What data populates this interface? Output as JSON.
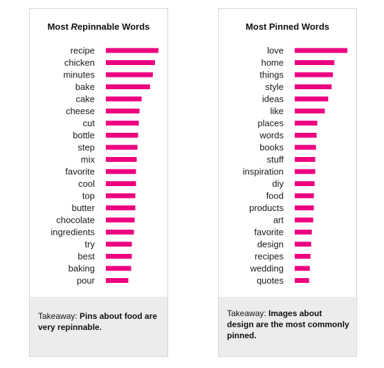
{
  "accent_color": "#ec007f",
  "chart_data": [
    {
      "type": "bar",
      "orientation": "horizontal",
      "title_prefix": "Most ",
      "title_emph": "R",
      "title_rest": "epinnable Words",
      "categories": [
        "recipe",
        "chicken",
        "minutes",
        "bake",
        "cake",
        "cheese",
        "cut",
        "bottle",
        "step",
        "mix",
        "favorite",
        "cool",
        "top",
        "butter",
        "chocolate",
        "ingredients",
        "try",
        "best",
        "baking",
        "pour"
      ],
      "values": [
        75,
        70,
        67,
        63,
        51,
        48,
        47,
        46,
        45,
        44,
        43,
        43,
        42,
        42,
        41,
        40,
        37,
        37,
        36,
        32
      ],
      "xlim": [
        0,
        75
      ],
      "takeaway_label": "Takeaway: ",
      "takeaway_text": "Pins about food are very repinnable."
    },
    {
      "type": "bar",
      "orientation": "horizontal",
      "title_prefix": "Most Pinned Words",
      "title_emph": "",
      "title_rest": "",
      "categories": [
        "love",
        "home",
        "things",
        "style",
        "ideas",
        "like",
        "places",
        "words",
        "books",
        "stuff",
        "inspiration",
        "diy",
        "food",
        "products",
        "art",
        "favorite",
        "design",
        "recipes",
        "wedding",
        "quotes"
      ],
      "values": [
        77,
        58,
        56,
        54,
        49,
        44,
        33,
        32,
        31,
        30,
        30,
        29,
        28,
        28,
        27,
        25,
        24,
        23,
        22,
        21
      ],
      "xlim": [
        0,
        77
      ],
      "takeaway_label": "Takeaway: ",
      "takeaway_text": "Images about design are the most commonly pinned."
    }
  ]
}
